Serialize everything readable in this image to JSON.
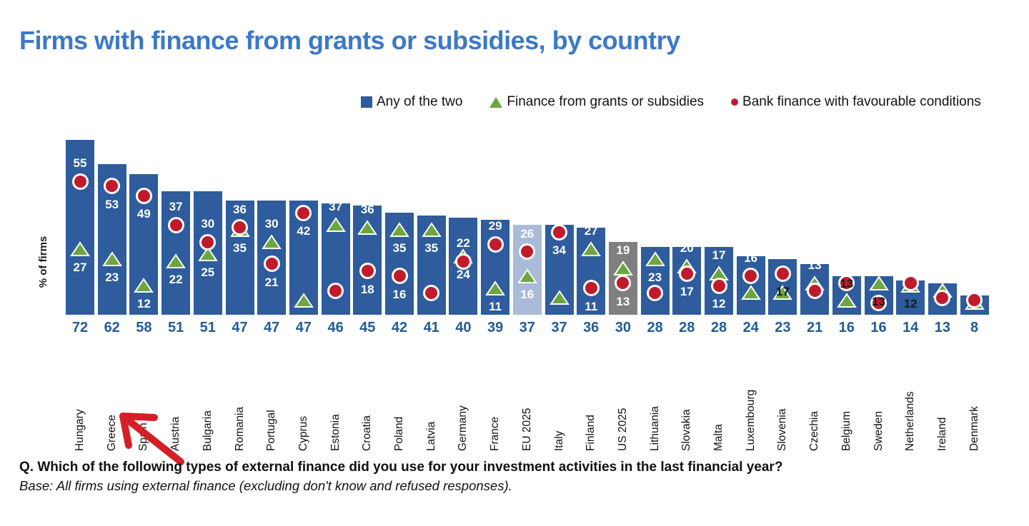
{
  "title": "Firms with finance from grants or subsidies, by country",
  "ylabel": "% of firms",
  "legend": [
    {
      "label": "Any of the two",
      "marker": "square-icon",
      "color": "#2e5c9c"
    },
    {
      "label": "Finance from grants or subsidies",
      "marker": "triangle-icon",
      "color": "#6ca63f"
    },
    {
      "label": "Bank finance with favourable conditions",
      "marker": "circle-icon",
      "color": "#c11b2b"
    }
  ],
  "footnote_question": "Q. Which of the following types of external finance did you use for your investment activities in the last financial year?",
  "footnote_base": "Base: All firms using external finance (excluding don't know and refused responses).",
  "annotation": {
    "type": "hand-drawn-arrow",
    "points_at": "Greece",
    "color": "#d51f26"
  },
  "colors": {
    "bar_default": "#2e5c9c",
    "bar_eu": "#a9bbd8",
    "bar_us": "#7f7f7f",
    "marker_red": "#c11b2b",
    "marker_green": "#6ca63f",
    "bottom_value_text": "#1e5c9b",
    "title_text": "#3b79c7"
  },
  "chart_data": {
    "type": "bar",
    "title": "Firms with finance from grants or subsidies, by country",
    "xlabel": "",
    "ylabel": "% of firms",
    "ylim": [
      0,
      75
    ],
    "grid": false,
    "legend_position": "top",
    "categories": [
      "Hungary",
      "Greece",
      "Spain",
      "Austria",
      "Bulgaria",
      "Romania",
      "Portugal",
      "Cyprus",
      "Estonia",
      "Croatia",
      "Poland",
      "Latvia",
      "Germany",
      "France",
      "EU 2025",
      "Italy",
      "Finland",
      "US 2025",
      "Lithuania",
      "Slovakia",
      "Malta",
      "Luxembourg",
      "Slovenia",
      "Czechia",
      "Belgium",
      "Sweden",
      "Netherlands",
      "Ireland",
      "Denmark"
    ],
    "series": [
      {
        "name": "Any of the two",
        "type": "bar",
        "values": [
          72,
          62,
          58,
          51,
          51,
          47,
          47,
          47,
          46,
          45,
          42,
          41,
          40,
          39,
          37,
          37,
          36,
          30,
          28,
          28,
          28,
          24,
          23,
          21,
          16,
          16,
          14,
          13,
          8
        ]
      },
      {
        "name": "Finance from grants or subsidies",
        "type": "point-triangle",
        "values": [
          27,
          23,
          12,
          22,
          25,
          35,
          30,
          6,
          37,
          36,
          35,
          35,
          24,
          11,
          16,
          7,
          27,
          19,
          23,
          20,
          17,
          9,
          9,
          13,
          6,
          13,
          12,
          10,
          5
        ],
        "note": "values without visible data label are estimated from marker position"
      },
      {
        "name": "Bank finance with favourable conditions",
        "type": "point-circle",
        "values": [
          55,
          53,
          49,
          37,
          30,
          36,
          21,
          42,
          10,
          18,
          16,
          9,
          22,
          29,
          26,
          34,
          11,
          13,
          9,
          17,
          12,
          16,
          17,
          10,
          13,
          5,
          13,
          7,
          6
        ],
        "note": "values without visible data label are estimated from marker position"
      }
    ],
    "bars": [
      {
        "country": "Hungary",
        "bar": 72,
        "bar_color": "#2e5c9c",
        "green": {
          "v": 27,
          "label": "27",
          "pos": "below",
          "color": "#ffffff"
        },
        "red": {
          "v": 55,
          "label": "55",
          "pos": "above",
          "color": "#ffffff"
        }
      },
      {
        "country": "Greece",
        "bar": 62,
        "bar_color": "#2e5c9c",
        "green": {
          "v": 23,
          "label": "23",
          "pos": "below",
          "color": "#ffffff"
        },
        "red": {
          "v": 53,
          "label": "53",
          "pos": "below",
          "color": "#ffffff"
        }
      },
      {
        "country": "Spain",
        "bar": 58,
        "bar_color": "#2e5c9c",
        "green": {
          "v": 12,
          "label": "12",
          "pos": "below",
          "color": "#ffffff"
        },
        "red": {
          "v": 49,
          "label": "49",
          "pos": "below",
          "color": "#ffffff"
        }
      },
      {
        "country": "Austria",
        "bar": 51,
        "bar_color": "#2e5c9c",
        "green": {
          "v": 22,
          "label": "22",
          "pos": "below",
          "color": "#ffffff"
        },
        "red": {
          "v": 37,
          "label": "37",
          "pos": "above",
          "color": "#ffffff"
        }
      },
      {
        "country": "Bulgaria",
        "bar": 51,
        "bar_color": "#2e5c9c",
        "green": {
          "v": 25,
          "label": "25",
          "pos": "below",
          "color": "#ffffff"
        },
        "red": {
          "v": 30,
          "label": "30",
          "pos": "above",
          "color": "#ffffff"
        }
      },
      {
        "country": "Romania",
        "bar": 47,
        "bar_color": "#2e5c9c",
        "green": {
          "v": 35,
          "label": "35",
          "pos": "below",
          "color": "#ffffff"
        },
        "red": {
          "v": 36,
          "label": "36",
          "pos": "above",
          "color": "#ffffff"
        }
      },
      {
        "country": "Portugal",
        "bar": 47,
        "bar_color": "#2e5c9c",
        "green": {
          "v": 30,
          "label": "30",
          "pos": "above",
          "color": "#ffffff"
        },
        "red": {
          "v": 21,
          "label": "21",
          "pos": "below",
          "color": "#ffffff"
        }
      },
      {
        "country": "Cyprus",
        "bar": 47,
        "bar_color": "#2e5c9c",
        "green": {
          "v": 6,
          "label": "",
          "pos": "none",
          "color": "#ffffff"
        },
        "red": {
          "v": 42,
          "label": "42",
          "pos": "below",
          "color": "#ffffff"
        }
      },
      {
        "country": "Estonia",
        "bar": 46,
        "bar_color": "#2e5c9c",
        "green": {
          "v": 37,
          "label": "37",
          "pos": "above",
          "color": "#ffffff"
        },
        "red": {
          "v": 10,
          "label": "",
          "pos": "none",
          "color": "#ffffff"
        }
      },
      {
        "country": "Croatia",
        "bar": 45,
        "bar_color": "#2e5c9c",
        "green": {
          "v": 36,
          "label": "36",
          "pos": "above",
          "color": "#ffffff"
        },
        "red": {
          "v": 18,
          "label": "18",
          "pos": "below",
          "color": "#ffffff"
        }
      },
      {
        "country": "Poland",
        "bar": 42,
        "bar_color": "#2e5c9c",
        "green": {
          "v": 35,
          "label": "35",
          "pos": "below",
          "color": "#ffffff"
        },
        "red": {
          "v": 16,
          "label": "16",
          "pos": "below",
          "color": "#ffffff"
        }
      },
      {
        "country": "Latvia",
        "bar": 41,
        "bar_color": "#2e5c9c",
        "green": {
          "v": 35,
          "label": "35",
          "pos": "below",
          "color": "#ffffff"
        },
        "red": {
          "v": 9,
          "label": "",
          "pos": "none",
          "color": "#ffffff"
        }
      },
      {
        "country": "Germany",
        "bar": 40,
        "bar_color": "#2e5c9c",
        "green": {
          "v": 24,
          "label": "24",
          "pos": "below",
          "color": "#ffffff"
        },
        "red": {
          "v": 22,
          "label": "22",
          "pos": "above",
          "color": "#ffffff"
        }
      },
      {
        "country": "France",
        "bar": 39,
        "bar_color": "#2e5c9c",
        "green": {
          "v": 11,
          "label": "11",
          "pos": "below",
          "color": "#ffffff"
        },
        "red": {
          "v": 29,
          "label": "29",
          "pos": "above",
          "color": "#ffffff"
        }
      },
      {
        "country": "EU 2025",
        "bar": 37,
        "bar_color": "#a9bbd8",
        "green": {
          "v": 16,
          "label": "16",
          "pos": "below",
          "color": "#ffffff"
        },
        "red": {
          "v": 26,
          "label": "26",
          "pos": "above",
          "color": "#ffffff"
        }
      },
      {
        "country": "Italy",
        "bar": 37,
        "bar_color": "#2e5c9c",
        "green": {
          "v": 7,
          "label": "",
          "pos": "none",
          "color": "#ffffff"
        },
        "red": {
          "v": 34,
          "label": "34",
          "pos": "below",
          "color": "#ffffff"
        }
      },
      {
        "country": "Finland",
        "bar": 36,
        "bar_color": "#2e5c9c",
        "green": {
          "v": 27,
          "label": "27",
          "pos": "above",
          "color": "#ffffff"
        },
        "red": {
          "v": 11,
          "label": "11",
          "pos": "below",
          "color": "#ffffff"
        }
      },
      {
        "country": "US 2025",
        "bar": 30,
        "bar_color": "#7f7f7f",
        "green": {
          "v": 19,
          "label": "19",
          "pos": "above",
          "color": "#ffffff"
        },
        "red": {
          "v": 13,
          "label": "13",
          "pos": "below",
          "color": "#ffffff"
        }
      },
      {
        "country": "Lithuania",
        "bar": 28,
        "bar_color": "#2e5c9c",
        "green": {
          "v": 23,
          "label": "23",
          "pos": "below",
          "color": "#ffffff"
        },
        "red": {
          "v": 9,
          "label": "",
          "pos": "none",
          "color": "#ffffff"
        }
      },
      {
        "country": "Slovakia",
        "bar": 28,
        "bar_color": "#2e5c9c",
        "green": {
          "v": 20,
          "label": "20",
          "pos": "above",
          "color": "#ffffff"
        },
        "red": {
          "v": 17,
          "label": "17",
          "pos": "below",
          "color": "#ffffff"
        }
      },
      {
        "country": "Malta",
        "bar": 28,
        "bar_color": "#2e5c9c",
        "green": {
          "v": 17,
          "label": "17",
          "pos": "above",
          "color": "#ffffff"
        },
        "red": {
          "v": 12,
          "label": "12",
          "pos": "below",
          "color": "#ffffff"
        }
      },
      {
        "country": "Luxembourg",
        "bar": 24,
        "bar_color": "#2e5c9c",
        "green": {
          "v": 9,
          "label": "",
          "pos": "none",
          "color": "#ffffff"
        },
        "red": {
          "v": 16,
          "label": "16",
          "pos": "above",
          "color": "#ffffff"
        }
      },
      {
        "country": "Slovenia",
        "bar": 23,
        "bar_color": "#2e5c9c",
        "green": {
          "v": 9,
          "label": "",
          "pos": "none",
          "color": "#ffffff"
        },
        "red": {
          "v": 17,
          "label": "17",
          "pos": "below",
          "color": "#1a1a1a"
        }
      },
      {
        "country": "Czechia",
        "bar": 21,
        "bar_color": "#2e5c9c",
        "green": {
          "v": 13,
          "label": "13",
          "pos": "above",
          "color": "#ffffff"
        },
        "red": {
          "v": 10,
          "label": "",
          "pos": "none",
          "color": "#ffffff"
        }
      },
      {
        "country": "Belgium",
        "bar": 16,
        "bar_color": "#2e5c9c",
        "green": {
          "v": 6,
          "label": "",
          "pos": "none",
          "color": "#ffffff"
        },
        "red": {
          "v": 13,
          "label": "13",
          "pos": "on",
          "color": "#1a1a1a"
        }
      },
      {
        "country": "Sweden",
        "bar": 16,
        "bar_color": "#2e5c9c",
        "green": {
          "v": 13,
          "label": "13",
          "pos": "below",
          "color": "#1a1a1a"
        },
        "red": {
          "v": 5,
          "label": "",
          "pos": "none",
          "color": "#ffffff"
        }
      },
      {
        "country": "Netherlands",
        "bar": 14,
        "bar_color": "#2e5c9c",
        "green": {
          "v": 12,
          "label": "12",
          "pos": "below",
          "color": "#1a1a1a"
        },
        "red": {
          "v": 13,
          "label": "",
          "pos": "none",
          "color": "#ffffff"
        }
      },
      {
        "country": "Ireland",
        "bar": 13,
        "bar_color": "#2e5c9c",
        "green": {
          "v": 10,
          "label": "",
          "pos": "none",
          "color": "#ffffff"
        },
        "red": {
          "v": 7,
          "label": "",
          "pos": "none",
          "color": "#ffffff"
        }
      },
      {
        "country": "Denmark",
        "bar": 8,
        "bar_color": "#2e5c9c",
        "green": {
          "v": 5,
          "label": "",
          "pos": "none",
          "color": "#ffffff"
        },
        "red": {
          "v": 6,
          "label": "",
          "pos": "none",
          "color": "#ffffff"
        }
      }
    ]
  }
}
